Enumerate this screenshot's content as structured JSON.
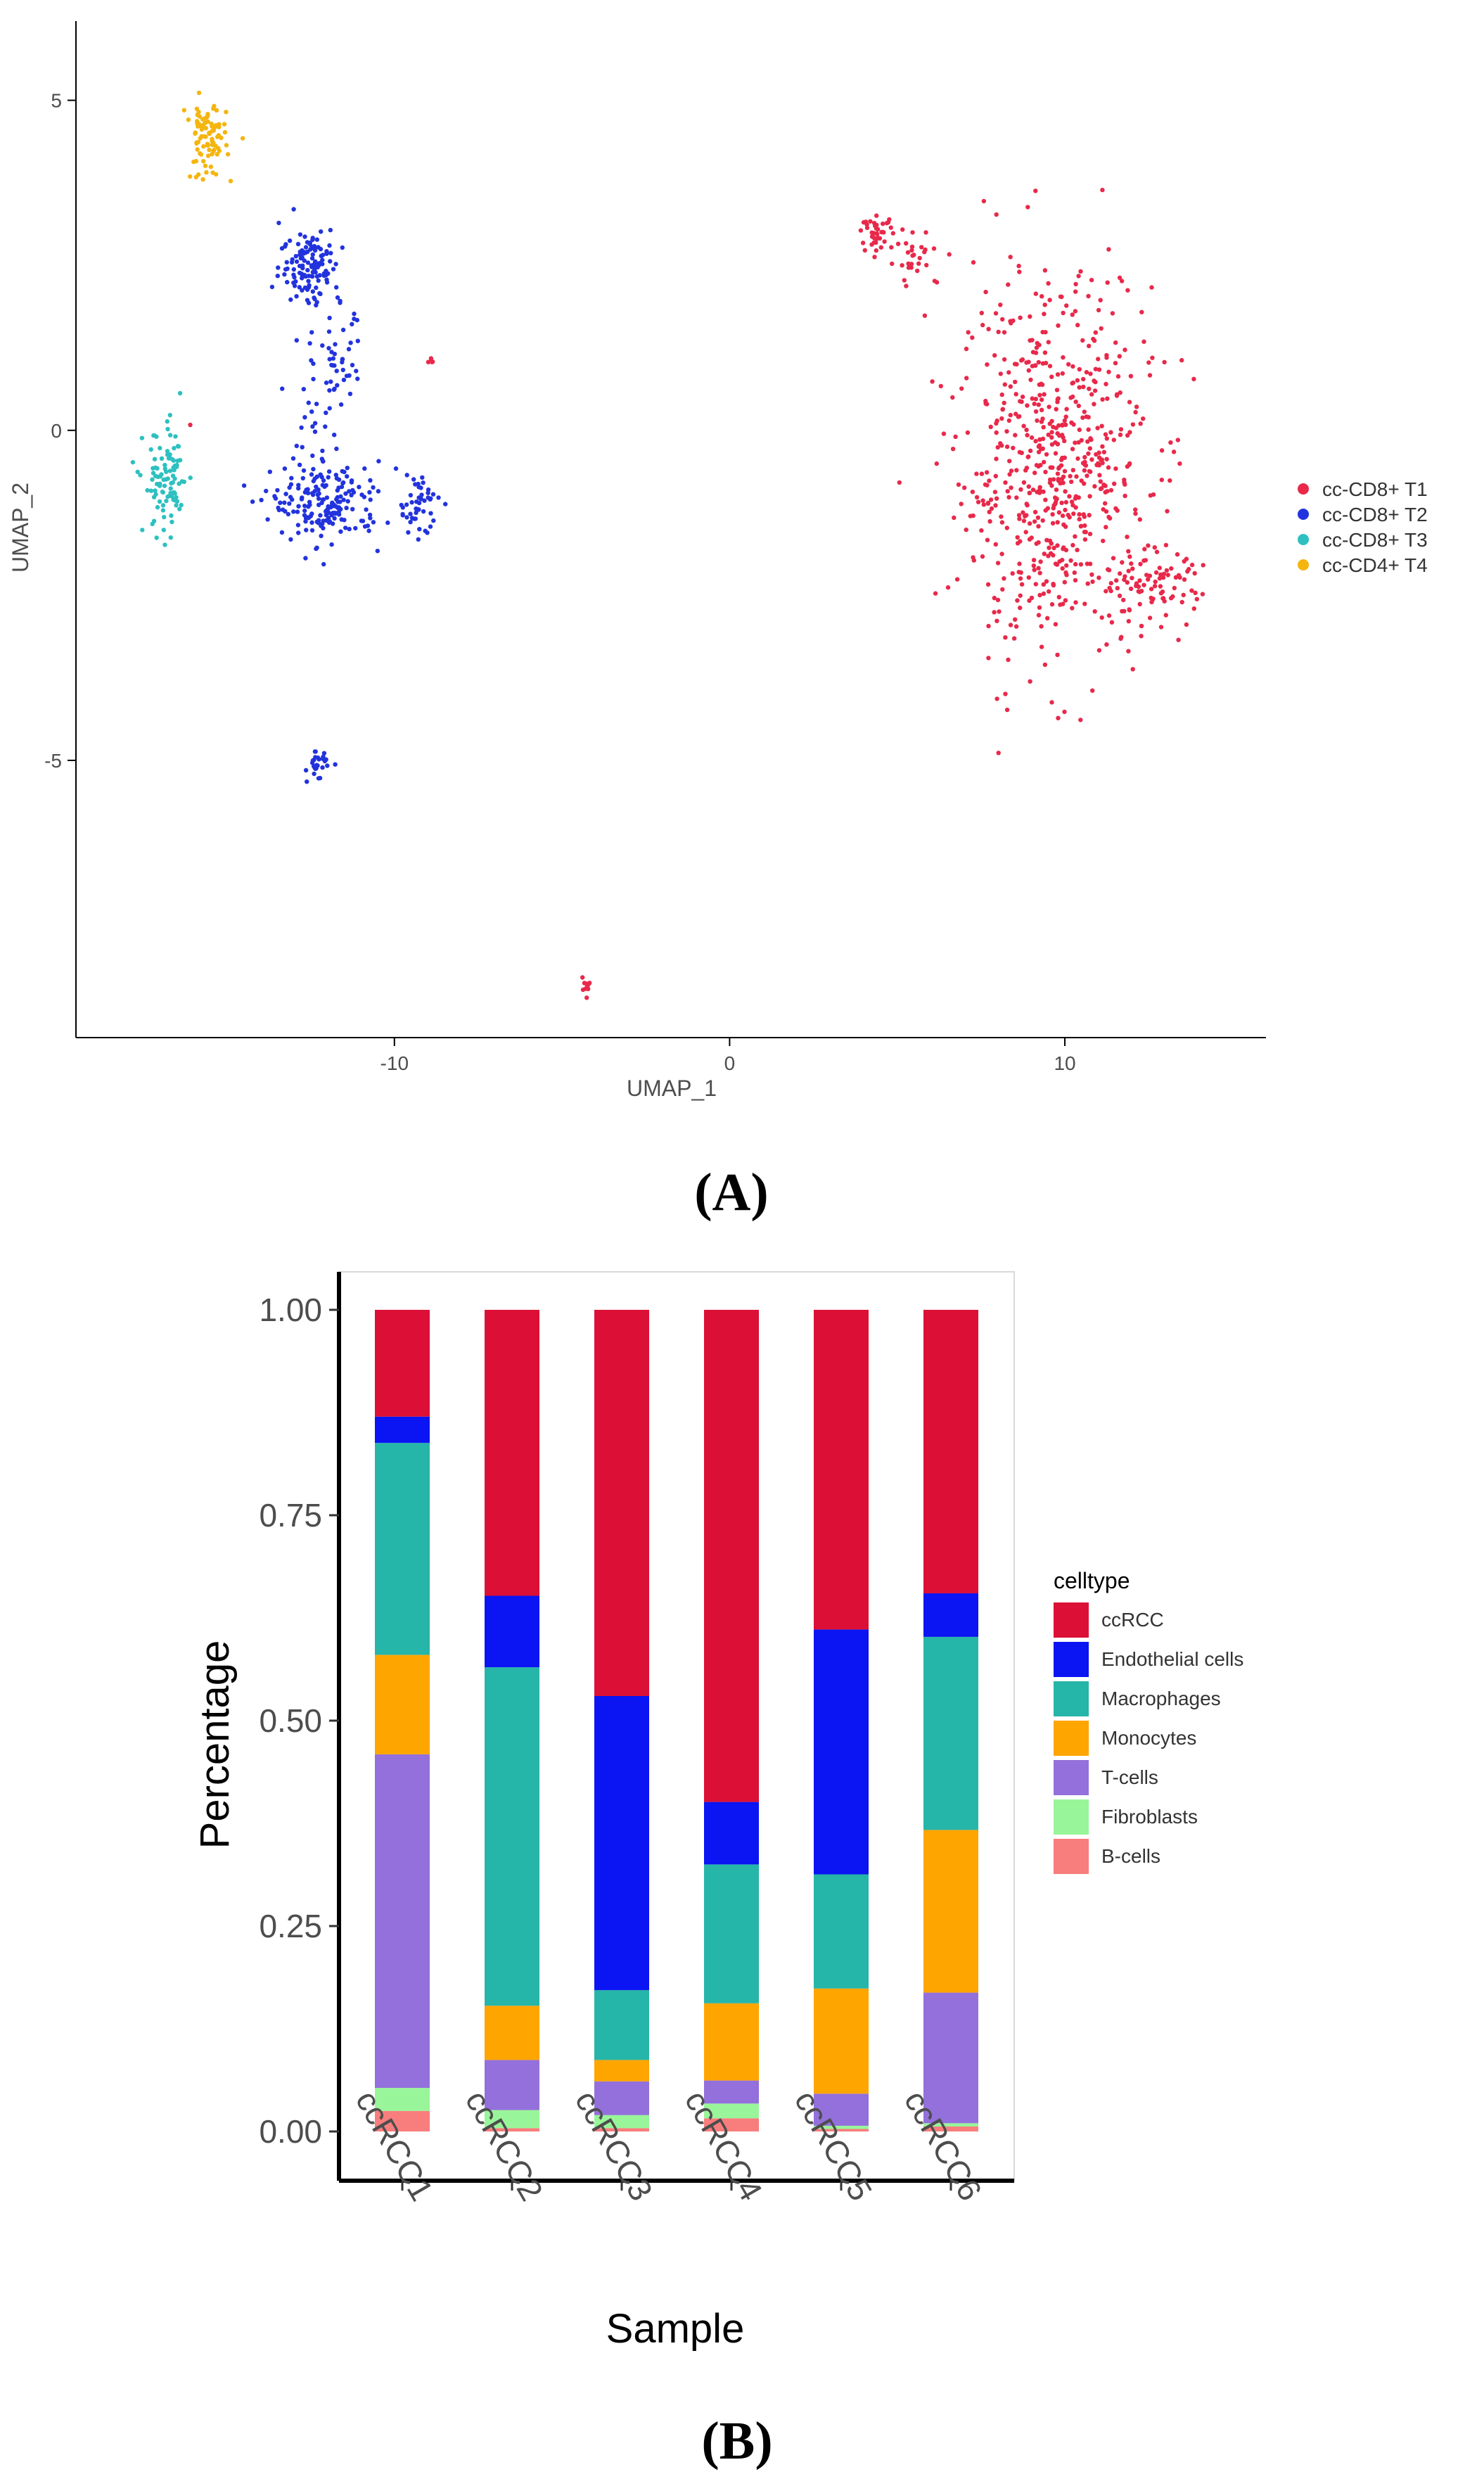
{
  "panels": {
    "a_label": "(A)",
    "b_label": "(B)"
  },
  "chart_data": [
    {
      "type": "scatter",
      "xlabel": "UMAP_1",
      "ylabel": "UMAP_2",
      "xlim": [
        -19.5,
        16
      ],
      "ylim": [
        -9.2,
        6.2
      ],
      "xticks": [
        -10,
        0,
        10
      ],
      "xtick_labels": [
        "-10",
        "0",
        "10"
      ],
      "yticks": [
        -5,
        0,
        5
      ],
      "ytick_labels": [
        "-5",
        "0",
        "5"
      ],
      "legend_position": "right",
      "series": [
        {
          "name": "cc-CD8+ T1",
          "color": "#E8294A",
          "clusters": [
            {
              "cx": 9.7,
              "cy": -0.6,
              "sx": 1.9,
              "sy": 1.9,
              "n": 650
            },
            {
              "cx": 12.6,
              "cy": -2.4,
              "sx": 1.0,
              "sy": 0.4,
              "n": 80
            },
            {
              "cx": 4.4,
              "cy": 3.0,
              "sx": 0.3,
              "sy": 0.15,
              "n": 40
            },
            {
              "cx": 5.6,
              "cy": 2.6,
              "sx": 0.6,
              "sy": 0.3,
              "n": 30
            },
            {
              "cx": -4.3,
              "cy": -8.4,
              "sx": 0.12,
              "sy": 0.1,
              "n": 10
            },
            {
              "cx": -8.9,
              "cy": 1.1,
              "sx": 0.05,
              "sy": 0.05,
              "n": 5
            },
            {
              "cx": -16.1,
              "cy": 0.1,
              "sx": 0.02,
              "sy": 0.02,
              "n": 1
            }
          ]
        },
        {
          "name": "cc-CD8+ T2",
          "color": "#2233DD",
          "clusters": [
            {
              "cx": -12.5,
              "cy": 2.5,
              "sx": 0.6,
              "sy": 0.4,
              "n": 130
            },
            {
              "cx": -12.0,
              "cy": -1.1,
              "sx": 1.1,
              "sy": 0.4,
              "n": 180
            },
            {
              "cx": -9.3,
              "cy": -1.1,
              "sx": 0.4,
              "sy": 0.3,
              "n": 50
            },
            {
              "cx": -11.6,
              "cy": 1.0,
              "sx": 0.4,
              "sy": 0.5,
              "n": 40
            },
            {
              "cx": -12.3,
              "cy": -5.1,
              "sx": 0.2,
              "sy": 0.15,
              "n": 30
            },
            {
              "cx": -12.4,
              "cy": 0.0,
              "sx": 0.5,
              "sy": 1.3,
              "n": 35
            }
          ]
        },
        {
          "name": "cc-CD8+ T3",
          "color": "#2EC0C0",
          "clusters": [
            {
              "cx": -16.8,
              "cy": -0.8,
              "sx": 0.45,
              "sy": 0.55,
              "n": 100
            }
          ]
        },
        {
          "name": "cc-CD4+ T4",
          "color": "#F5B50F",
          "clusters": [
            {
              "cx": -15.6,
              "cy": 4.4,
              "sx": 0.4,
              "sy": 0.4,
              "n": 90
            }
          ]
        }
      ]
    },
    {
      "type": "bar",
      "stacked": true,
      "xlabel": "Sample",
      "ylabel": "Percentage",
      "ylim": [
        0,
        1
      ],
      "yticks": [
        0,
        0.25,
        0.5,
        0.75,
        1
      ],
      "ytick_labels": [
        "0.00",
        "0.25",
        "0.50",
        "0.75",
        "1.00"
      ],
      "legend_title": "celltype",
      "legend_position": "right",
      "categories": [
        "ccRCC1",
        "ccRCC2",
        "ccRCC3",
        "ccRCC4",
        "ccRCC5",
        "ccRCC6"
      ],
      "series": [
        {
          "name": "B-cells",
          "color": "#F87D7D",
          "values": [
            0.025,
            0.004,
            0.004,
            0.016,
            0.003,
            0.006
          ]
        },
        {
          "name": "Fibroblasts",
          "color": "#99F59A",
          "values": [
            0.028,
            0.022,
            0.016,
            0.018,
            0.004,
            0.004
          ]
        },
        {
          "name": "T-cells",
          "color": "#9370DB",
          "values": [
            0.406,
            0.061,
            0.041,
            0.028,
            0.039,
            0.159
          ]
        },
        {
          "name": "Monocytes",
          "color": "#FFA500",
          "values": [
            0.121,
            0.066,
            0.026,
            0.094,
            0.128,
            0.198
          ]
        },
        {
          "name": "Macrophages",
          "color": "#26B5A9",
          "values": [
            0.258,
            0.412,
            0.085,
            0.169,
            0.139,
            0.235
          ]
        },
        {
          "name": "Endothelial cells",
          "color": "#0B14F2",
          "values": [
            0.032,
            0.087,
            0.358,
            0.076,
            0.298,
            0.053
          ]
        },
        {
          "name": "ccRCC",
          "color": "#DC1036",
          "values": [
            0.13,
            0.348,
            0.47,
            0.599,
            0.389,
            0.345
          ]
        }
      ],
      "legend_order": [
        "ccRCC",
        "Endothelial cells",
        "Macrophages",
        "Monocytes",
        "T-cells",
        "Fibroblasts",
        "B-cells"
      ]
    }
  ]
}
